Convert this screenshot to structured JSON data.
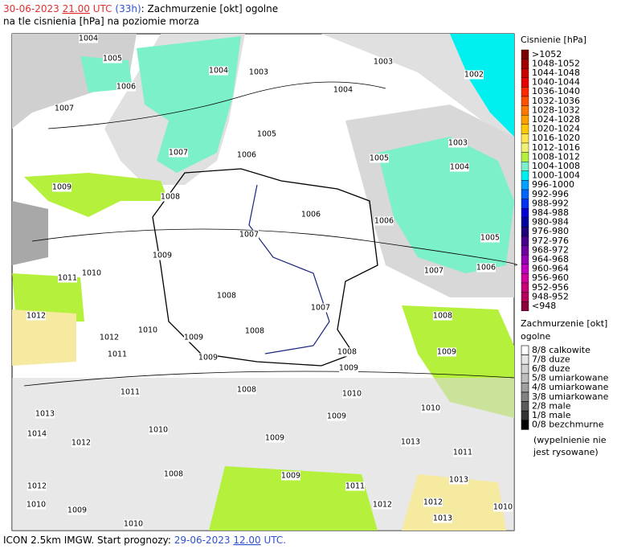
{
  "header": {
    "date": "30-06-2023",
    "hour": "21.00",
    "utc": "UTC",
    "lead": "(33h)",
    "title": ": Zachmurzenie [okt] ogolne",
    "subtitle": "na tle cisnienia [hPa] na poziomie morza"
  },
  "pressure_legend": {
    "title": "Cisnienie [hPa]",
    "items": [
      {
        "label": ">1052",
        "color": "#7a0000"
      },
      {
        "label": "1048-1052",
        "color": "#a00000"
      },
      {
        "label": "1044-1048",
        "color": "#c80000"
      },
      {
        "label": "1040-1044",
        "color": "#e60000"
      },
      {
        "label": "1036-1040",
        "color": "#ff2800"
      },
      {
        "label": "1032-1036",
        "color": "#ff5000"
      },
      {
        "label": "1028-1032",
        "color": "#ff7800"
      },
      {
        "label": "1024-1028",
        "color": "#ffa000"
      },
      {
        "label": "1020-1024",
        "color": "#ffc800"
      },
      {
        "label": "1016-1020",
        "color": "#ffe650"
      },
      {
        "label": "1012-1016",
        "color": "#f0f078"
      },
      {
        "label": "1008-1012",
        "color": "#b4f03c"
      },
      {
        "label": "1004-1008",
        "color": "#7cf0c8"
      },
      {
        "label": "1000-1004",
        "color": "#00f0f0"
      },
      {
        "label": "996-1000",
        "color": "#00a0ff"
      },
      {
        "label": "992-996",
        "color": "#0064ff"
      },
      {
        "label": "988-992",
        "color": "#0032f0"
      },
      {
        "label": "984-988",
        "color": "#0000d2"
      },
      {
        "label": "980-984",
        "color": "#0000a0"
      },
      {
        "label": "976-980",
        "color": "#1e0078"
      },
      {
        "label": "972-976",
        "color": "#46008c"
      },
      {
        "label": "968-972",
        "color": "#6e00a0"
      },
      {
        "label": "964-968",
        "color": "#9600b4"
      },
      {
        "label": "960-964",
        "color": "#be00be"
      },
      {
        "label": "956-960",
        "color": "#d2009a"
      },
      {
        "label": "952-956",
        "color": "#c80078"
      },
      {
        "label": "948-952",
        "color": "#b4005a"
      },
      {
        "label": "<948",
        "color": "#8c003c"
      }
    ]
  },
  "cloud_legend": {
    "title": "Zachmurzenie [okt]",
    "title2": "ogolne",
    "items": [
      {
        "label": "8/8 calkowite",
        "color": "#ffffff"
      },
      {
        "label": "7/8 duze",
        "color": "#e6e6e6"
      },
      {
        "label": "6/8 duze",
        "color": "#d2d2d2"
      },
      {
        "label": "5/8 umiarkowane",
        "color": "#bebebe"
      },
      {
        "label": "4/8 umiarkowane",
        "color": "#a0a0a0"
      },
      {
        "label": "3/8 umiarkowane",
        "color": "#828282"
      },
      {
        "label": "2/8 male",
        "color": "#5a5a5a"
      },
      {
        "label": "1/8 male",
        "color": "#323232"
      },
      {
        "label": "0/8 bezchmurne",
        "color": "#000000"
      }
    ],
    "note1": "(wypelnienie nie",
    "note2": "jest rysowane)"
  },
  "isobar_labels": [
    "1004",
    "1005",
    "1004",
    "1003",
    "1003",
    "1002",
    "1006",
    "1004",
    "1007",
    "1005",
    "1003",
    "1007",
    "1006",
    "1005",
    "1004",
    "1009",
    "1008",
    "1006",
    "1006",
    "1007",
    "1005",
    "1009",
    "1006",
    "1007",
    "1011",
    "1010",
    "1008",
    "1007",
    "1012",
    "1008",
    "1010",
    "1008",
    "1009",
    "1012",
    "1009",
    "1011",
    "1009",
    "1008",
    "1009",
    "1011",
    "1008",
    "1010",
    "1013",
    "1010",
    "1009",
    "1014",
    "1012",
    "1010",
    "1009",
    "1013",
    "1011",
    "1012",
    "1009",
    "1008",
    "1011",
    "1013",
    "1012",
    "1012",
    "1010",
    "1010",
    "1009",
    "1010",
    "1013"
  ],
  "footer": {
    "model": "ICON 2.5km IMGW. Start prognozy:",
    "date": "29-06-2023",
    "hour": "12.00",
    "utc": "UTC."
  }
}
